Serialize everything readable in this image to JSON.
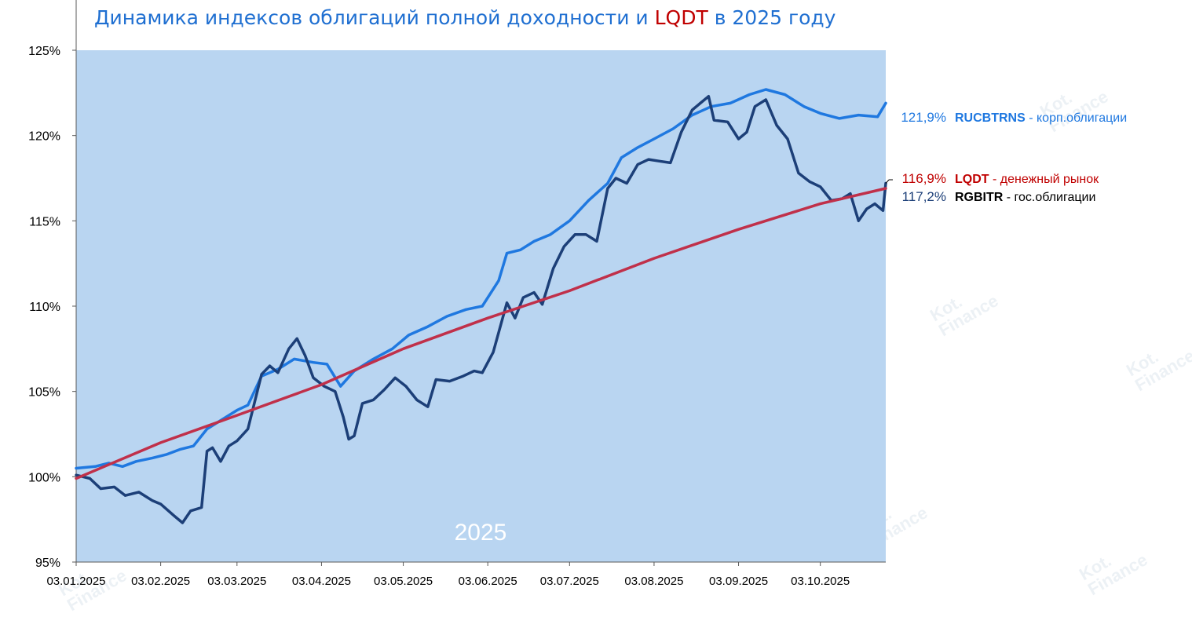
{
  "title": {
    "part1": "Динамика индексов облигаций полной доходности и ",
    "highlight": "LQDT",
    "part2": " в 2025 году",
    "color_main": "#1f6fd1",
    "color_highlight": "#c00000"
  },
  "watermark": {
    "line1": "Kot.",
    "line2": "Finance"
  },
  "chart_data": {
    "type": "line",
    "year_label": "2025",
    "ylim": [
      95,
      125
    ],
    "y_ticks": [
      95,
      100,
      105,
      110,
      115,
      120,
      125
    ],
    "y_tick_labels": [
      "95%",
      "100%",
      "105%",
      "110%",
      "115%",
      "120%",
      "125%"
    ],
    "x_ticks": [
      "03.01.2025",
      "03.02.2025",
      "03.03.2025",
      "03.04.2025",
      "03.05.2025",
      "03.06.2025",
      "03.07.2025",
      "03.08.2025",
      "03.09.2025",
      "03.10.2025"
    ],
    "grid": false,
    "plot_background": "#b9d5f1",
    "series": [
      {
        "name": "RUCBTRNS",
        "description": "корп.облигации",
        "end_label": "121,9%",
        "color": "#1f78e0",
        "label_color": "#1f78e0",
        "desc_color": "#1f78e0",
        "points": [
          [
            "03.01.2025",
            100.5
          ],
          [
            "10.01.2025",
            100.6
          ],
          [
            "15.01.2025",
            100.8
          ],
          [
            "20.01.2025",
            100.6
          ],
          [
            "25.01.2025",
            100.9
          ],
          [
            "31.01.2025",
            101.1
          ],
          [
            "05.02.2025",
            101.3
          ],
          [
            "10.02.2025",
            101.6
          ],
          [
            "15.02.2025",
            101.8
          ],
          [
            "20.02.2025",
            102.8
          ],
          [
            "25.02.2025",
            103.3
          ],
          [
            "03.03.2025",
            103.9
          ],
          [
            "07.03.2025",
            104.2
          ],
          [
            "12.03.2025",
            105.9
          ],
          [
            "18.03.2025",
            106.3
          ],
          [
            "24.03.2025",
            106.9
          ],
          [
            "31.03.2025",
            106.7
          ],
          [
            "05.04.2025",
            106.6
          ],
          [
            "10.04.2025",
            105.3
          ],
          [
            "15.04.2025",
            106.2
          ],
          [
            "22.04.2025",
            106.9
          ],
          [
            "29.04.2025",
            107.5
          ],
          [
            "05.05.2025",
            108.3
          ],
          [
            "12.05.2025",
            108.8
          ],
          [
            "19.05.2025",
            109.4
          ],
          [
            "26.05.2025",
            109.8
          ],
          [
            "01.06.2025",
            110.0
          ],
          [
            "07.06.2025",
            111.5
          ],
          [
            "10.06.2025",
            113.1
          ],
          [
            "15.06.2025",
            113.3
          ],
          [
            "20.06.2025",
            113.8
          ],
          [
            "26.06.2025",
            114.2
          ],
          [
            "03.07.2025",
            115.0
          ],
          [
            "10.07.2025",
            116.2
          ],
          [
            "17.07.2025",
            117.2
          ],
          [
            "22.07.2025",
            118.7
          ],
          [
            "28.07.2025",
            119.3
          ],
          [
            "03.08.2025",
            119.8
          ],
          [
            "10.08.2025",
            120.4
          ],
          [
            "17.08.2025",
            121.2
          ],
          [
            "24.08.2025",
            121.7
          ],
          [
            "31.08.2025",
            121.9
          ],
          [
            "07.09.2025",
            122.4
          ],
          [
            "13.09.2025",
            122.7
          ],
          [
            "20.09.2025",
            122.4
          ],
          [
            "27.09.2025",
            121.7
          ],
          [
            "03.10.2025",
            121.3
          ],
          [
            "10.10.2025",
            121.0
          ],
          [
            "17.10.2025",
            121.2
          ],
          [
            "24.10.2025",
            121.1
          ],
          [
            "27.10.2025",
            121.9
          ]
        ]
      },
      {
        "name": "LQDT",
        "description": "денежный рынок",
        "end_label": "116,9%",
        "color": "#c0304a",
        "label_color": "#c00000",
        "desc_color": "#c00000",
        "points": [
          [
            "03.01.2025",
            99.9
          ],
          [
            "03.02.2025",
            102.0
          ],
          [
            "03.03.2025",
            103.6
          ],
          [
            "03.04.2025",
            105.4
          ],
          [
            "03.05.2025",
            107.5
          ],
          [
            "03.06.2025",
            109.3
          ],
          [
            "03.07.2025",
            110.9
          ],
          [
            "03.08.2025",
            112.8
          ],
          [
            "03.09.2025",
            114.5
          ],
          [
            "03.10.2025",
            116.0
          ],
          [
            "27.10.2025",
            116.9
          ]
        ]
      },
      {
        "name": "RGBITR",
        "description": "гос.облигации",
        "end_label": "117,2%",
        "color": "#1c3f78",
        "label_color": "#1c3f78",
        "desc_color": "#000000",
        "points": [
          [
            "03.01.2025",
            100.1
          ],
          [
            "08.01.2025",
            99.9
          ],
          [
            "12.01.2025",
            99.3
          ],
          [
            "17.01.2025",
            99.4
          ],
          [
            "21.01.2025",
            98.9
          ],
          [
            "26.01.2025",
            99.1
          ],
          [
            "31.01.2025",
            98.6
          ],
          [
            "03.02.2025",
            98.4
          ],
          [
            "08.02.2025",
            97.7
          ],
          [
            "11.02.2025",
            97.3
          ],
          [
            "14.02.2025",
            98.0
          ],
          [
            "18.02.2025",
            98.2
          ],
          [
            "20.02.2025",
            101.5
          ],
          [
            "22.02.2025",
            101.7
          ],
          [
            "25.02.2025",
            100.9
          ],
          [
            "28.02.2025",
            101.8
          ],
          [
            "03.03.2025",
            102.1
          ],
          [
            "07.03.2025",
            102.8
          ],
          [
            "12.03.2025",
            106.0
          ],
          [
            "15.03.2025",
            106.5
          ],
          [
            "18.03.2025",
            106.1
          ],
          [
            "22.03.2025",
            107.5
          ],
          [
            "25.03.2025",
            108.1
          ],
          [
            "28.03.2025",
            107.1
          ],
          [
            "31.03.2025",
            105.8
          ],
          [
            "04.04.2025",
            105.3
          ],
          [
            "08.04.2025",
            105.0
          ],
          [
            "11.04.2025",
            103.5
          ],
          [
            "13.04.2025",
            102.2
          ],
          [
            "15.04.2025",
            102.4
          ],
          [
            "18.04.2025",
            104.3
          ],
          [
            "22.04.2025",
            104.5
          ],
          [
            "26.04.2025",
            105.1
          ],
          [
            "30.04.2025",
            105.8
          ],
          [
            "04.05.2025",
            105.3
          ],
          [
            "08.05.2025",
            104.5
          ],
          [
            "12.05.2025",
            104.1
          ],
          [
            "15.05.2025",
            105.7
          ],
          [
            "20.05.2025",
            105.6
          ],
          [
            "25.05.2025",
            105.9
          ],
          [
            "29.05.2025",
            106.2
          ],
          [
            "01.06.2025",
            106.1
          ],
          [
            "05.06.2025",
            107.3
          ],
          [
            "10.06.2025",
            110.2
          ],
          [
            "13.06.2025",
            109.3
          ],
          [
            "16.06.2025",
            110.5
          ],
          [
            "20.06.2025",
            110.8
          ],
          [
            "23.06.2025",
            110.1
          ],
          [
            "27.06.2025",
            112.2
          ],
          [
            "01.07.2025",
            113.5
          ],
          [
            "05.07.2025",
            114.2
          ],
          [
            "09.07.2025",
            114.2
          ],
          [
            "13.07.2025",
            113.8
          ],
          [
            "17.07.2025",
            116.9
          ],
          [
            "20.07.2025",
            117.5
          ],
          [
            "24.07.2025",
            117.2
          ],
          [
            "28.07.2025",
            118.3
          ],
          [
            "01.08.2025",
            118.6
          ],
          [
            "05.08.2025",
            118.5
          ],
          [
            "09.08.2025",
            118.4
          ],
          [
            "13.08.2025",
            120.2
          ],
          [
            "17.08.2025",
            121.5
          ],
          [
            "20.08.2025",
            121.9
          ],
          [
            "23.08.2025",
            122.3
          ],
          [
            "25.08.2025",
            120.9
          ],
          [
            "30.08.2025",
            120.8
          ],
          [
            "03.09.2025",
            119.8
          ],
          [
            "06.09.2025",
            120.2
          ],
          [
            "09.09.2025",
            121.7
          ],
          [
            "13.09.2025",
            122.1
          ],
          [
            "17.09.2025",
            120.6
          ],
          [
            "21.09.2025",
            119.8
          ],
          [
            "25.09.2025",
            117.8
          ],
          [
            "29.09.2025",
            117.3
          ],
          [
            "03.10.2025",
            117.0
          ],
          [
            "07.10.2025",
            116.2
          ],
          [
            "11.10.2025",
            116.3
          ],
          [
            "14.10.2025",
            116.6
          ],
          [
            "17.10.2025",
            115.0
          ],
          [
            "20.10.2025",
            115.7
          ],
          [
            "23.10.2025",
            116.0
          ],
          [
            "26.10.2025",
            115.6
          ],
          [
            "27.10.2025",
            117.2
          ]
        ]
      }
    ]
  }
}
